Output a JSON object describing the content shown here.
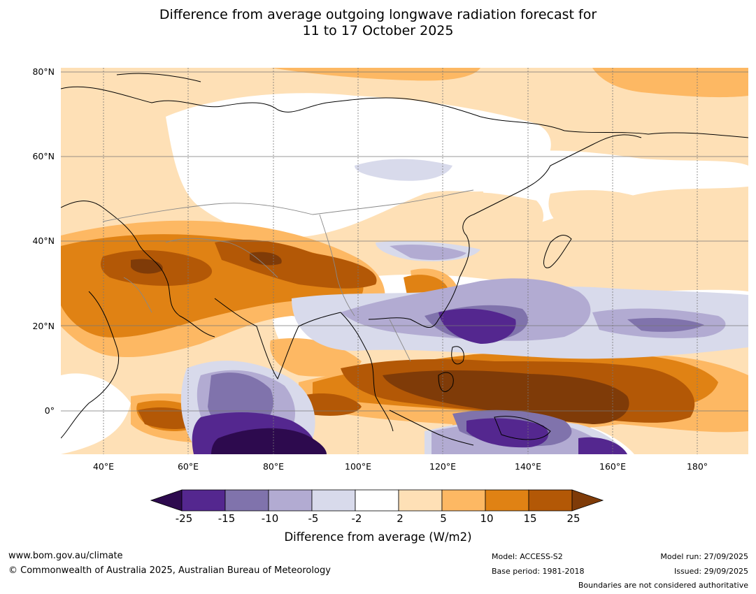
{
  "title_line1": "Difference from average outgoing longwave radiation forecast for",
  "title_line2": "11 to 17 October 2025",
  "lat_labels": [
    "80°N",
    "60°N",
    "40°N",
    "20°N",
    "0°"
  ],
  "lon_labels": [
    "40°E",
    "60°E",
    "80°E",
    "100°E",
    "120°E",
    "140°E",
    "160°E",
    "180°"
  ],
  "colorbar": {
    "ticks": [
      "-25",
      "-15",
      "-10",
      "-5",
      "-2",
      "2",
      "5",
      "10",
      "15",
      "25"
    ],
    "colors": [
      "#2d0a4e",
      "#54278f",
      "#8073ac",
      "#b2abd2",
      "#d8daeb",
      "#ffffff",
      "#fee0b6",
      "#fdb863",
      "#e08214",
      "#b35806",
      "#7f3b08"
    ],
    "label": "Difference from average (W/m2)"
  },
  "footer": {
    "url": "www.bom.gov.au/climate",
    "copyright": "© Commonwealth of Australia 2025, Australian Bureau of Meteorology",
    "model": "Model: ACCESS-S2",
    "base_period": "Base period: 1981-2018",
    "model_run": "Model run: 27/09/2025",
    "issued": "Issued: 29/09/2025",
    "disclaimer": "Boundaries are not considered authoritative"
  }
}
